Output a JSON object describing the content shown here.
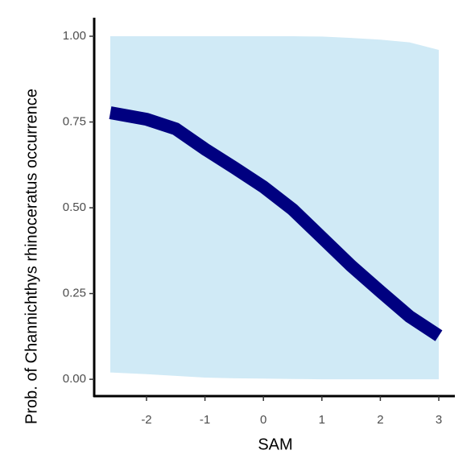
{
  "chart_data": {
    "type": "line",
    "x_label": "SAM",
    "y_label": "Prob. of  Channichthys rhinoceratus  occurrence",
    "x": [
      -2.62,
      -2,
      -1.5,
      -1,
      -0.5,
      0,
      0.5,
      1,
      1.5,
      2,
      2.5,
      3
    ],
    "series": [
      {
        "color": "#000080",
        "band_color": "#d0eaf6",
        "values": [
          0.777,
          0.758,
          0.73,
          0.671,
          0.617,
          0.561,
          0.495,
          0.413,
          0.331,
          0.256,
          0.183,
          0.127
        ],
        "lower": [
          0.02,
          0.015,
          0.01,
          0.005,
          0.003,
          0.002,
          0.001,
          0,
          0,
          0,
          0,
          0
        ],
        "upper": [
          1,
          1,
          1,
          1,
          1,
          1,
          1,
          0.999,
          0.995,
          0.99,
          0.982,
          0.96
        ]
      }
    ],
    "xlim": [
      -2.895,
      3.275
    ],
    "ylim": [
      -0.049,
      1.054
    ],
    "xticks": [
      -2,
      -1,
      0,
      1,
      2,
      3
    ],
    "yticks": [
      {
        "value": 0,
        "label": "0.00"
      },
      {
        "value": 0.25,
        "label": "0.25"
      },
      {
        "value": 0.5,
        "label": "0.50"
      },
      {
        "value": 0.75,
        "label": "0.75"
      },
      {
        "value": 1,
        "label": "1.00"
      }
    ]
  }
}
